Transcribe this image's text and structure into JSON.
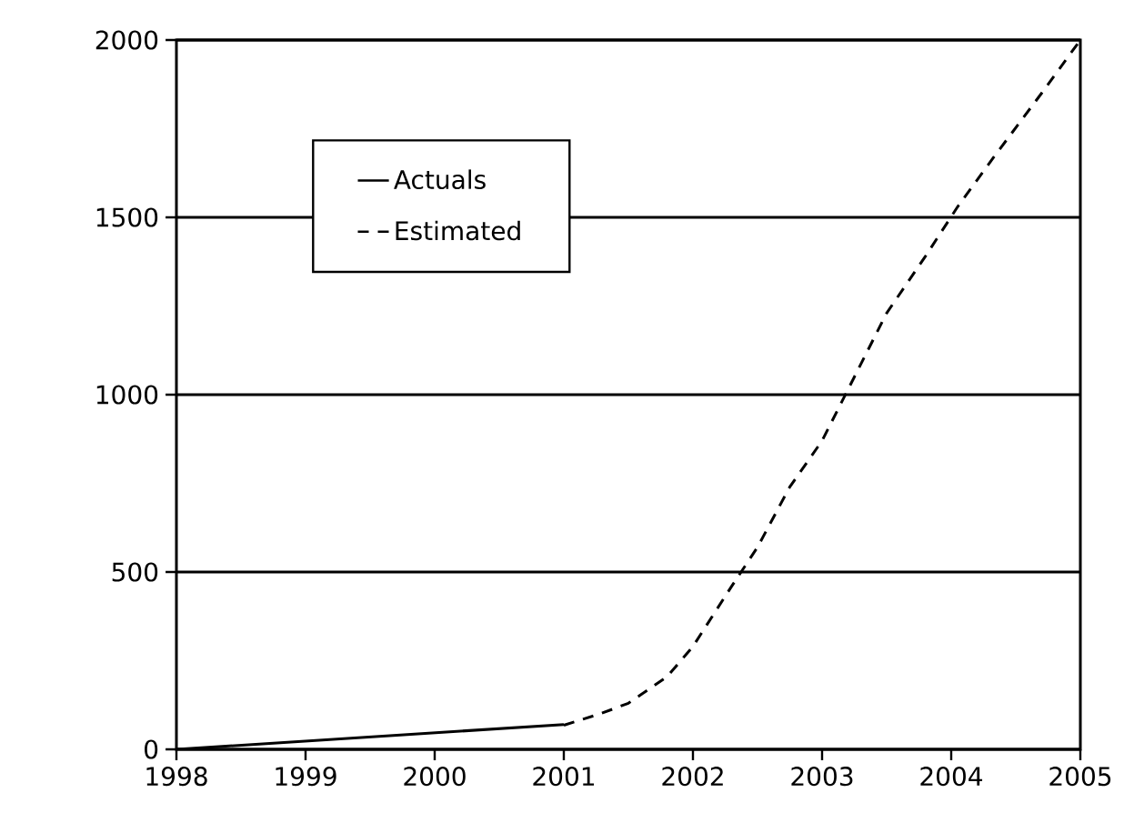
{
  "chart_data": {
    "type": "line",
    "xlim": [
      1998,
      2005
    ],
    "ylim": [
      0,
      2000
    ],
    "xticks": [
      1998,
      1999,
      2000,
      2001,
      2002,
      2003,
      2004,
      2005
    ],
    "yticks": [
      0,
      500,
      1000,
      1500,
      2000
    ],
    "grid": "y",
    "legend": "top left",
    "series": [
      {
        "name": "Actuals",
        "color": "#000000",
        "line_style": "solid",
        "x": [
          1998,
          2001
        ],
        "values": [
          0,
          70
        ]
      },
      {
        "name": "Estimated",
        "color": "#000000",
        "line_style": "dashed",
        "x": [
          2001,
          2001.28,
          2001.5,
          2001.8,
          2002,
          2002.3,
          2002.5,
          2002.75,
          2003,
          2003.25,
          2003.5,
          2003.8,
          2004.05,
          2004.33,
          2004.7,
          2005
        ],
        "values": [
          68,
          100,
          130,
          205,
          290,
          460,
          570,
          740,
          870,
          1050,
          1230,
          1390,
          1530,
          1670,
          1850,
          2000
        ]
      }
    ]
  }
}
